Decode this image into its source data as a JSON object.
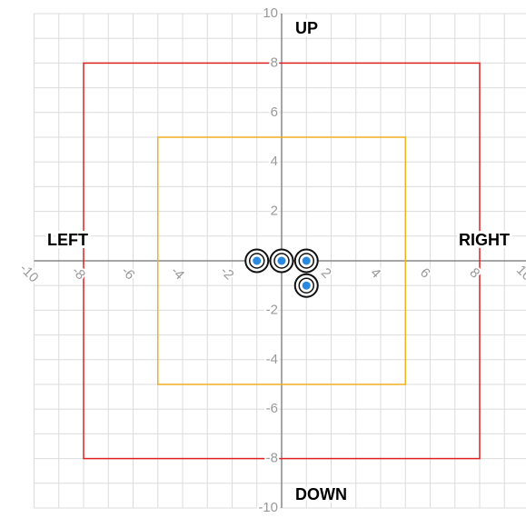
{
  "chart_data": {
    "type": "scatter",
    "xlim": [
      -10,
      10
    ],
    "ylim": [
      -10,
      10
    ],
    "xticks": [
      -10,
      -8,
      -6,
      -4,
      -2,
      2,
      4,
      6,
      8,
      10
    ],
    "yticks": [
      -10,
      -8,
      -6,
      -4,
      -2,
      2,
      4,
      6,
      8,
      10
    ],
    "minor_xticks": [
      -9,
      -7,
      -5,
      -3,
      -1,
      1,
      3,
      5,
      7,
      9
    ],
    "minor_yticks": [
      -9,
      -7,
      -5,
      -3,
      -1,
      1,
      3,
      5,
      7,
      9
    ],
    "grid": true,
    "regions": [
      {
        "x": [
          -8,
          8
        ],
        "y": [
          -8,
          8
        ],
        "color": "#e02020"
      },
      {
        "x": [
          -5,
          5
        ],
        "y": [
          -5,
          5
        ],
        "color": "#f0b020"
      }
    ],
    "series": [
      {
        "color": "#2a8ae0",
        "x": [
          -1,
          0,
          1,
          1
        ],
        "values": [
          0,
          0,
          0,
          -1
        ]
      }
    ],
    "annotations": [
      "UP",
      "DOWN",
      "LEFT",
      "RIGHT"
    ]
  }
}
